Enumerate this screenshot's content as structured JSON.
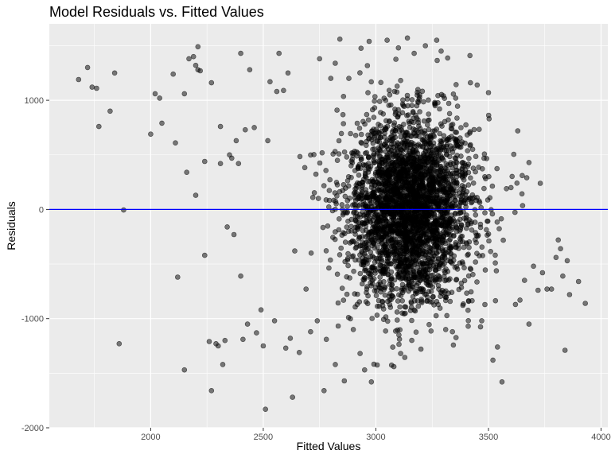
{
  "chart_data": {
    "type": "scatter",
    "title": "Model Residuals vs. Fitted Values",
    "xlabel": "Fitted Values",
    "ylabel": "Residuals",
    "xlim": [
      1550,
      4030
    ],
    "ylim": [
      -2000,
      1700
    ],
    "x_ticks": [
      2000,
      2500,
      3000,
      3500,
      4000
    ],
    "y_ticks": [
      -2000,
      -1000,
      0,
      1000
    ],
    "x_tick_labels": [
      "2000",
      "2500",
      "3000",
      "3500",
      "4000"
    ],
    "y_tick_labels": [
      "-2000",
      "-1000",
      "0",
      "1000"
    ],
    "reference_line": {
      "y": 0,
      "color": "#0000ff"
    },
    "grid": true,
    "colors": {
      "panel": "#ebebeb",
      "grid": "#ffffff",
      "point": "#000000",
      "point_opacity": 0.5
    },
    "cluster": {
      "center_x": 3150,
      "center_y": 0,
      "sd_x": 140,
      "sd_y": 420,
      "approx_count": 3300
    },
    "points": [
      [
        1680,
        1190
      ],
      [
        1720,
        1300
      ],
      [
        1740,
        1120
      ],
      [
        1760,
        1110
      ],
      [
        1770,
        760
      ],
      [
        1820,
        900
      ],
      [
        1840,
        1250
      ],
      [
        1860,
        -1230
      ],
      [
        1880,
        -5
      ],
      [
        2000,
        690
      ],
      [
        2020,
        1060
      ],
      [
        2040,
        1020
      ],
      [
        2050,
        790
      ],
      [
        2100,
        1240
      ],
      [
        2110,
        610
      ],
      [
        2120,
        -620
      ],
      [
        2150,
        1060
      ],
      [
        2160,
        340
      ],
      [
        2170,
        1380
      ],
      [
        2150,
        -1470
      ],
      [
        2190,
        1400
      ],
      [
        2200,
        1320
      ],
      [
        2200,
        130
      ],
      [
        2210,
        1490
      ],
      [
        2210,
        1280
      ],
      [
        2220,
        1270
      ],
      [
        2240,
        440
      ],
      [
        2240,
        -420
      ],
      [
        2260,
        -1210
      ],
      [
        2270,
        1160
      ],
      [
        2270,
        -1660
      ],
      [
        2290,
        -1230
      ],
      [
        2300,
        -1250
      ],
      [
        2310,
        420
      ],
      [
        2310,
        760
      ],
      [
        2320,
        -1420
      ],
      [
        2330,
        -1200
      ],
      [
        2340,
        -160
      ],
      [
        2350,
        500
      ],
      [
        2360,
        470
      ],
      [
        2370,
        -230
      ],
      [
        2380,
        630
      ],
      [
        2390,
        420
      ],
      [
        2400,
        -610
      ],
      [
        2400,
        1430
      ],
      [
        2410,
        -1190
      ],
      [
        2420,
        730
      ],
      [
        2430,
        -1050
      ],
      [
        2440,
        1280
      ],
      [
        2460,
        750
      ],
      [
        2470,
        -1130
      ],
      [
        2490,
        -920
      ],
      [
        2500,
        -1250
      ],
      [
        2510,
        -1830
      ],
      [
        2520,
        630
      ],
      [
        2530,
        1170
      ],
      [
        2550,
        -1020
      ],
      [
        2560,
        1080
      ],
      [
        2570,
        1430
      ],
      [
        2590,
        1090
      ],
      [
        2600,
        -1270
      ],
      [
        2610,
        1250
      ],
      [
        2620,
        -1180
      ],
      [
        2630,
        -1720
      ],
      [
        2640,
        -380
      ],
      [
        2660,
        -1310
      ],
      [
        2690,
        -730
      ],
      [
        2710,
        -1120
      ],
      [
        2740,
        -1020
      ],
      [
        2750,
        1380
      ],
      [
        2770,
        -1660
      ],
      [
        2780,
        -1190
      ],
      [
        2800,
        1200
      ],
      [
        2820,
        -1420
      ],
      [
        2840,
        1560
      ],
      [
        2860,
        -1570
      ],
      [
        2880,
        1200
      ],
      [
        2900,
        -1100
      ],
      [
        2930,
        -1320
      ],
      [
        2950,
        -1470
      ],
      [
        2970,
        1540
      ],
      [
        2980,
        -1580
      ],
      [
        3050,
        1550
      ],
      [
        3080,
        -1440
      ],
      [
        3100,
        1480
      ],
      [
        3110,
        -1320
      ],
      [
        3140,
        1570
      ],
      [
        3170,
        1430
      ],
      [
        3200,
        -1280
      ],
      [
        3220,
        1500
      ],
      [
        3270,
        1550
      ],
      [
        3290,
        1450
      ],
      [
        3310,
        -1100
      ],
      [
        3340,
        -1120
      ],
      [
        3410,
        -1070
      ],
      [
        3420,
        1160
      ],
      [
        3450,
        1140
      ],
      [
        3470,
        -1020
      ],
      [
        3500,
        1070
      ],
      [
        3520,
        -1380
      ],
      [
        3540,
        -1260
      ],
      [
        3560,
        -1580
      ],
      [
        3580,
        190
      ],
      [
        3600,
        200
      ],
      [
        3620,
        -870
      ],
      [
        3630,
        720
      ],
      [
        3640,
        -830
      ],
      [
        3650,
        310
      ],
      [
        3660,
        -650
      ],
      [
        3670,
        290
      ],
      [
        3680,
        430
      ],
      [
        3680,
        -1050
      ],
      [
        3700,
        -520
      ],
      [
        3720,
        -740
      ],
      [
        3730,
        240
      ],
      [
        3740,
        -580
      ],
      [
        3760,
        -730
      ],
      [
        3780,
        -730
      ],
      [
        3800,
        -440
      ],
      [
        3810,
        -280
      ],
      [
        3820,
        -360
      ],
      [
        3830,
        -610
      ],
      [
        3840,
        -1290
      ],
      [
        3850,
        -470
      ],
      [
        3860,
        -780
      ],
      [
        3900,
        -660
      ],
      [
        3930,
        -860
      ]
    ]
  }
}
